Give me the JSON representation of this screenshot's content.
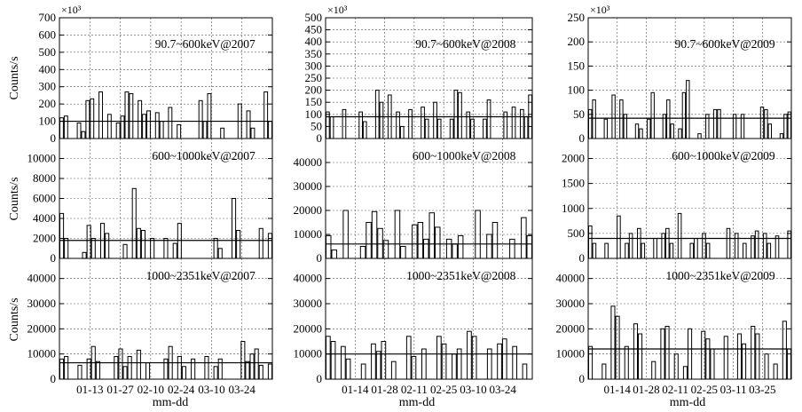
{
  "figure": {
    "ylabel": "Counts/s",
    "xlabel": "mm-dd",
    "x_tick_labels": [
      [
        "01-13",
        "01-27",
        "02-10",
        "02-24",
        "03-10",
        "03-24"
      ],
      [
        "01-14",
        "01-28",
        "02-11",
        "02-25",
        "03-10",
        "03-24"
      ],
      [
        "01-14",
        "01-28",
        "02-11",
        "02-25",
        "03-11",
        "03-25"
      ]
    ]
  },
  "chart_data": [
    {
      "type": "bar",
      "title": "90.7~600keV@2007",
      "multiplier": "×10³",
      "ylim": [
        0,
        700
      ],
      "yticks": [
        0,
        100,
        200,
        300,
        400,
        500,
        600,
        700
      ],
      "mean": 100,
      "values": [
        120,
        130,
        0,
        0,
        90,
        40,
        220,
        230,
        0,
        270,
        0,
        140,
        0,
        90,
        130,
        270,
        260,
        0,
        220,
        140,
        160,
        0,
        150,
        100,
        0,
        180,
        0,
        80,
        0,
        0,
        0,
        0,
        220,
        100,
        260,
        0,
        0,
        60,
        0,
        0,
        0,
        200,
        0,
        160,
        60,
        0,
        0,
        270,
        100
      ]
    },
    {
      "type": "bar",
      "title": "90.7~600keV@2008",
      "multiplier": "×10³",
      "ylim": [
        0,
        500
      ],
      "yticks": [
        0,
        50,
        100,
        150,
        200,
        250,
        300,
        350,
        400,
        450,
        500
      ],
      "mean": 90,
      "values": [
        110,
        90,
        0,
        0,
        120,
        0,
        0,
        0,
        110,
        70,
        0,
        0,
        200,
        150,
        0,
        180,
        0,
        110,
        50,
        0,
        120,
        0,
        0,
        130,
        80,
        0,
        150,
        80,
        0,
        0,
        80,
        200,
        190,
        0,
        110,
        80,
        0,
        0,
        80,
        160,
        0,
        0,
        0,
        110,
        0,
        130,
        0,
        120,
        90,
        180
      ]
    },
    {
      "type": "bar",
      "title": "90.7~600keV@2009",
      "multiplier": "×10³",
      "ylim": [
        0,
        250
      ],
      "yticks": [
        0,
        50,
        100,
        150,
        200,
        250
      ],
      "mean": 42,
      "values": [
        60,
        80,
        0,
        0,
        40,
        0,
        90,
        0,
        80,
        50,
        0,
        0,
        30,
        20,
        0,
        40,
        95,
        0,
        0,
        50,
        80,
        30,
        0,
        20,
        95,
        120,
        0,
        0,
        10,
        0,
        50,
        0,
        60,
        60,
        0,
        0,
        0,
        50,
        0,
        50,
        0,
        0,
        0,
        0,
        65,
        60,
        30,
        0,
        0,
        10,
        50,
        55
      ]
    },
    {
      "type": "bar",
      "title": "600~1000keV@2007",
      "ylim": [
        0,
        12000
      ],
      "yticks": [
        0,
        2000,
        4000,
        6000,
        8000,
        10000
      ],
      "mean": 1800,
      "values": [
        4500,
        2000,
        0,
        0,
        0,
        600,
        3300,
        2000,
        0,
        3500,
        2500,
        0,
        0,
        0,
        1400,
        0,
        7000,
        3000,
        2800,
        0,
        2000,
        0,
        0,
        2000,
        0,
        1500,
        3500,
        0,
        0,
        0,
        0,
        0,
        0,
        0,
        2000,
        1000,
        0,
        0,
        6000,
        2800,
        0,
        0,
        0,
        0,
        3000,
        0,
        2500
      ]
    },
    {
      "type": "bar",
      "title": "600~1000keV@2008",
      "ylim": [
        0,
        50000
      ],
      "yticks": [
        0,
        10000,
        20000,
        30000,
        40000
      ],
      "mean": 6000,
      "values": [
        9500,
        3500,
        0,
        20000,
        0,
        0,
        5000,
        15000,
        19500,
        12500,
        7500,
        0,
        20000,
        5000,
        0,
        14000,
        15000,
        8000,
        19000,
        13000,
        0,
        8000,
        6000,
        9500,
        0,
        0,
        20000,
        0,
        10000,
        15000,
        0,
        0,
        8000,
        0,
        17000,
        9500
      ]
    },
    {
      "type": "bar",
      "title": "600~1000keV@2009",
      "ylim": [
        0,
        2400
      ],
      "yticks": [
        0,
        500,
        1000,
        1500,
        2000
      ],
      "mean": 400,
      "values": [
        650,
        300,
        0,
        0,
        300,
        0,
        0,
        850,
        0,
        300,
        500,
        0,
        600,
        300,
        0,
        0,
        400,
        0,
        500,
        600,
        300,
        0,
        900,
        0,
        0,
        300,
        400,
        0,
        500,
        300,
        0,
        0,
        0,
        0,
        600,
        0,
        500,
        0,
        300,
        0,
        450,
        550,
        0,
        500,
        300,
        0,
        450,
        0,
        0,
        550
      ]
    },
    {
      "type": "bar",
      "title": "1000~2351keV@2007",
      "ylim": [
        0,
        48000
      ],
      "yticks": [
        0,
        10000,
        20000,
        30000,
        40000
      ],
      "mean": 6500,
      "values": [
        8000,
        9000,
        0,
        0,
        5500,
        0,
        8000,
        13000,
        7000,
        0,
        0,
        0,
        9000,
        12000,
        5000,
        9000,
        0,
        11500,
        0,
        6500,
        0,
        0,
        0,
        8000,
        13000,
        0,
        9000,
        5000,
        0,
        8000,
        0,
        0,
        9000,
        0,
        5000,
        8000,
        0,
        0,
        0,
        0,
        15000,
        7000,
        10000,
        12000,
        5500,
        0,
        6000
      ]
    },
    {
      "type": "bar",
      "title": "1000~2351keV@2008",
      "ylim": [
        0,
        48000
      ],
      "yticks": [
        0,
        10000,
        20000,
        30000,
        40000
      ],
      "mean": 10000,
      "values": [
        17000,
        15000,
        0,
        13000,
        8000,
        0,
        0,
        6000,
        0,
        14000,
        11000,
        15000,
        0,
        7000,
        0,
        0,
        17000,
        9000,
        0,
        12000,
        0,
        0,
        17000,
        14000,
        0,
        10000,
        12000,
        0,
        19000,
        17000,
        0,
        0,
        12000,
        0,
        14000,
        16000,
        0,
        13000,
        0,
        6000,
        0
      ]
    },
    {
      "type": "bar",
      "title": "1000~2351keV@2009",
      "ylim": [
        0,
        48000
      ],
      "yticks": [
        0,
        10000,
        20000,
        30000,
        40000
      ],
      "mean": 12000,
      "values": [
        13000,
        0,
        0,
        6000,
        0,
        29000,
        25000,
        0,
        13000,
        0,
        22000,
        18000,
        0,
        0,
        7000,
        0,
        20000,
        21000,
        0,
        10000,
        0,
        5000,
        20000,
        0,
        0,
        19000,
        16000,
        12000,
        0,
        0,
        17000,
        0,
        0,
        18000,
        14000,
        0,
        21000,
        18000,
        0,
        10000,
        0,
        6000,
        0,
        23000,
        12000
      ]
    }
  ]
}
